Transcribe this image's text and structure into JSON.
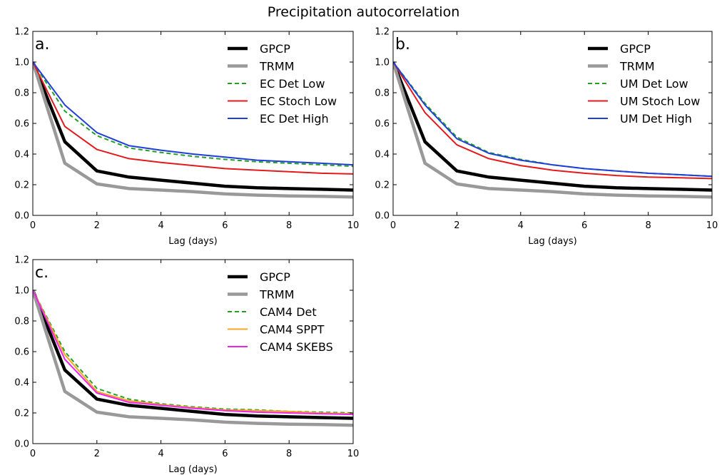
{
  "suptitle": "Precipitation autocorrelation",
  "chart_data": [
    {
      "type": "line",
      "panel_label": "a.",
      "xlabel": "Lag (days)",
      "ylabel": "",
      "xlim": [
        0,
        10
      ],
      "ylim": [
        0.0,
        1.2
      ],
      "xticks": [
        "0",
        "2",
        "4",
        "6",
        "8",
        "10"
      ],
      "yticks": [
        "0.0",
        "0.2",
        "0.4",
        "0.6",
        "0.8",
        "1.0",
        "1.2"
      ],
      "legend_position": "top-right",
      "x": [
        0,
        1,
        2,
        3,
        4,
        5,
        6,
        7,
        8,
        9,
        10
      ],
      "series": [
        {
          "name": "GPCP",
          "color": "#000000",
          "style": "solid",
          "width": "thick",
          "values": [
            1.0,
            0.48,
            0.29,
            0.25,
            0.23,
            0.21,
            0.19,
            0.18,
            0.175,
            0.17,
            0.165
          ]
        },
        {
          "name": "TRMM",
          "color": "#999999",
          "style": "solid",
          "width": "thick",
          "values": [
            1.0,
            0.34,
            0.205,
            0.175,
            0.165,
            0.155,
            0.14,
            0.132,
            0.127,
            0.124,
            0.12
          ]
        },
        {
          "name": "EC Det Low",
          "color": "#22a022",
          "style": "dashed",
          "width": "thin",
          "values": [
            1.0,
            0.68,
            0.52,
            0.44,
            0.41,
            0.385,
            0.365,
            0.35,
            0.34,
            0.33,
            0.32
          ]
        },
        {
          "name": "EC Stoch Low",
          "color": "#e31a1c",
          "style": "solid",
          "width": "thin",
          "values": [
            1.0,
            0.58,
            0.43,
            0.37,
            0.345,
            0.325,
            0.305,
            0.295,
            0.285,
            0.275,
            0.27
          ]
        },
        {
          "name": "EC Det High",
          "color": "#1f3fd8",
          "style": "solid",
          "width": "thin",
          "values": [
            1.0,
            0.72,
            0.54,
            0.455,
            0.425,
            0.4,
            0.38,
            0.36,
            0.35,
            0.34,
            0.33
          ]
        }
      ]
    },
    {
      "type": "line",
      "panel_label": "b.",
      "xlabel": "Lag (days)",
      "ylabel": "",
      "xlim": [
        0,
        10
      ],
      "ylim": [
        0.0,
        1.2
      ],
      "xticks": [
        "0",
        "2",
        "4",
        "6",
        "8",
        "10"
      ],
      "yticks": [
        "0.0",
        "0.2",
        "0.4",
        "0.6",
        "0.8",
        "1.0",
        "1.2"
      ],
      "legend_position": "top-right",
      "x": [
        0,
        1,
        2,
        3,
        4,
        5,
        6,
        7,
        8,
        9,
        10
      ],
      "series": [
        {
          "name": "GPCP",
          "color": "#000000",
          "style": "solid",
          "width": "thick",
          "values": [
            1.0,
            0.48,
            0.29,
            0.25,
            0.23,
            0.21,
            0.19,
            0.18,
            0.175,
            0.17,
            0.165
          ]
        },
        {
          "name": "TRMM",
          "color": "#999999",
          "style": "solid",
          "width": "thick",
          "values": [
            1.0,
            0.34,
            0.205,
            0.175,
            0.165,
            0.155,
            0.14,
            0.132,
            0.127,
            0.124,
            0.12
          ]
        },
        {
          "name": "UM Det Low",
          "color": "#22a022",
          "style": "dashed",
          "width": "thin",
          "values": [
            1.0,
            0.73,
            0.51,
            0.41,
            0.365,
            0.33,
            0.305,
            0.29,
            0.275,
            0.265,
            0.255
          ]
        },
        {
          "name": "UM Stoch Low",
          "color": "#e31a1c",
          "style": "solid",
          "width": "thin",
          "values": [
            1.0,
            0.67,
            0.46,
            0.37,
            0.325,
            0.295,
            0.275,
            0.26,
            0.25,
            0.245,
            0.24
          ]
        },
        {
          "name": "UM Det High",
          "color": "#1f3fd8",
          "style": "solid",
          "width": "thin",
          "values": [
            1.0,
            0.72,
            0.5,
            0.405,
            0.36,
            0.33,
            0.305,
            0.29,
            0.275,
            0.265,
            0.255
          ]
        }
      ]
    },
    {
      "type": "line",
      "panel_label": "c.",
      "xlabel": "Lag (days)",
      "ylabel": "",
      "xlim": [
        0,
        10
      ],
      "ylim": [
        0.0,
        1.2
      ],
      "xticks": [
        "0",
        "2",
        "4",
        "6",
        "8",
        "10"
      ],
      "yticks": [
        "0.0",
        "0.2",
        "0.4",
        "0.6",
        "0.8",
        "1.0",
        "1.2"
      ],
      "legend_position": "top-right",
      "x": [
        0,
        1,
        2,
        3,
        4,
        5,
        6,
        7,
        8,
        9,
        10
      ],
      "series": [
        {
          "name": "GPCP",
          "color": "#000000",
          "style": "solid",
          "width": "thick",
          "values": [
            1.0,
            0.48,
            0.29,
            0.25,
            0.23,
            0.21,
            0.19,
            0.18,
            0.175,
            0.17,
            0.165
          ]
        },
        {
          "name": "TRMM",
          "color": "#999999",
          "style": "solid",
          "width": "thick",
          "values": [
            1.0,
            0.34,
            0.205,
            0.175,
            0.165,
            0.155,
            0.14,
            0.132,
            0.127,
            0.124,
            0.12
          ]
        },
        {
          "name": "CAM4 Det",
          "color": "#22a022",
          "style": "dashed",
          "width": "thin",
          "values": [
            1.0,
            0.6,
            0.36,
            0.29,
            0.26,
            0.24,
            0.225,
            0.22,
            0.21,
            0.205,
            0.2
          ]
        },
        {
          "name": "CAM4 SPPT",
          "color": "#f5a623",
          "style": "solid",
          "width": "thin",
          "values": [
            1.0,
            0.58,
            0.34,
            0.28,
            0.255,
            0.235,
            0.22,
            0.215,
            0.21,
            0.2,
            0.195
          ]
        },
        {
          "name": "CAM4 SKEBS",
          "color": "#ee22ee",
          "style": "solid",
          "width": "thin",
          "values": [
            1.0,
            0.55,
            0.33,
            0.27,
            0.25,
            0.23,
            0.215,
            0.205,
            0.2,
            0.195,
            0.19
          ]
        }
      ]
    }
  ]
}
